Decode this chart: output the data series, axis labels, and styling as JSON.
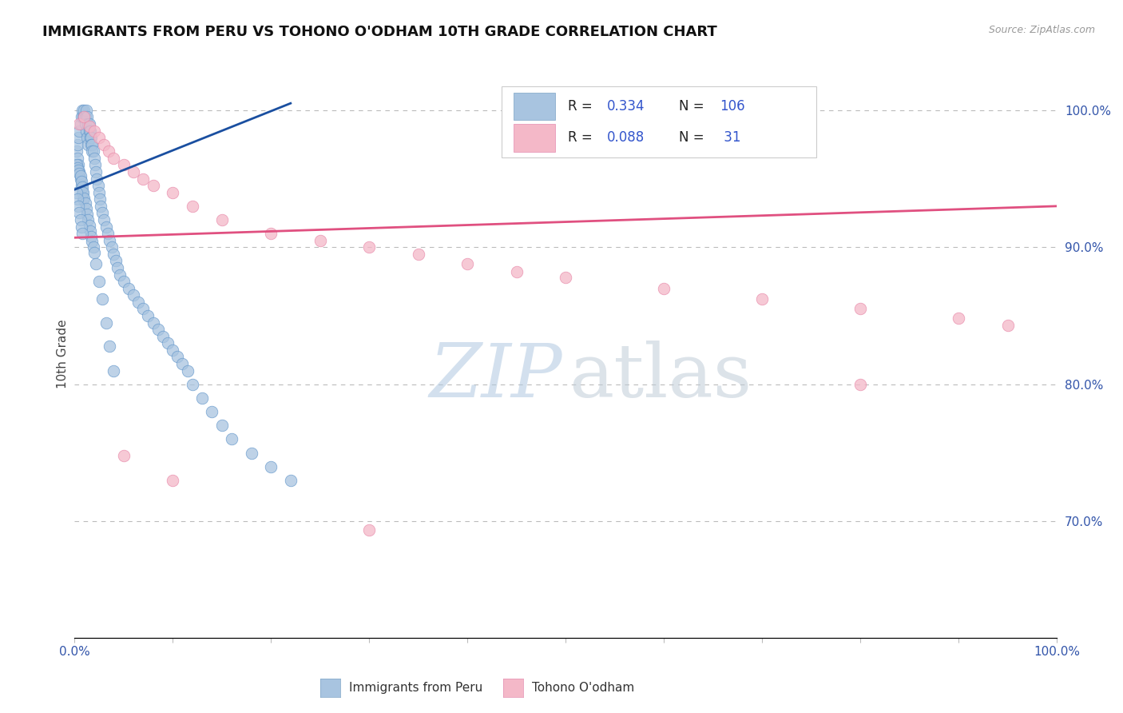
{
  "title": "IMMIGRANTS FROM PERU VS TOHONO O'ODHAM 10TH GRADE CORRELATION CHART",
  "source_text": "Source: ZipAtlas.com",
  "ylabel": "10th Grade",
  "y_tick_labels": [
    "70.0%",
    "80.0%",
    "90.0%",
    "100.0%"
  ],
  "y_tick_values": [
    0.7,
    0.8,
    0.9,
    1.0
  ],
  "x_range": [
    0.0,
    1.0
  ],
  "y_range": [
    0.615,
    1.03
  ],
  "series1_color": "#a8c4e0",
  "series1_edge": "#6699cc",
  "series2_color": "#f4b8c8",
  "series2_edge": "#e88aaa",
  "line1_color": "#1a4fa0",
  "line2_color": "#e05080",
  "watermark_zip_color": "#b0c8e0",
  "watermark_atlas_color": "#c0ccd8",
  "background_color": "#ffffff",
  "title_fontsize": 13,
  "axis_label_color": "#3355aa",
  "grid_color": "#bbbbbb",
  "legend_r1": "0.334",
  "legend_n1": "106",
  "legend_r2": "0.088",
  "legend_n2": " 31",
  "blue_x": [
    0.002,
    0.003,
    0.003,
    0.004,
    0.004,
    0.005,
    0.005,
    0.006,
    0.006,
    0.007,
    0.007,
    0.008,
    0.008,
    0.009,
    0.009,
    0.01,
    0.01,
    0.011,
    0.011,
    0.012,
    0.012,
    0.013,
    0.013,
    0.014,
    0.014,
    0.015,
    0.015,
    0.016,
    0.016,
    0.017,
    0.017,
    0.018,
    0.018,
    0.019,
    0.02,
    0.021,
    0.022,
    0.023,
    0.024,
    0.025,
    0.026,
    0.027,
    0.028,
    0.03,
    0.032,
    0.034,
    0.036,
    0.038,
    0.04,
    0.042,
    0.044,
    0.046,
    0.05,
    0.055,
    0.06,
    0.065,
    0.07,
    0.075,
    0.08,
    0.085,
    0.09,
    0.095,
    0.1,
    0.105,
    0.11,
    0.115,
    0.12,
    0.13,
    0.14,
    0.15,
    0.16,
    0.18,
    0.2,
    0.22,
    0.002,
    0.003,
    0.004,
    0.005,
    0.006,
    0.007,
    0.008,
    0.009,
    0.01,
    0.011,
    0.012,
    0.013,
    0.014,
    0.015,
    0.016,
    0.017,
    0.018,
    0.019,
    0.02,
    0.022,
    0.025,
    0.028,
    0.032,
    0.036,
    0.04,
    0.002,
    0.003,
    0.004,
    0.005,
    0.006,
    0.007,
    0.008
  ],
  "blue_y": [
    0.97,
    0.975,
    0.965,
    0.98,
    0.96,
    0.985,
    0.955,
    0.99,
    0.95,
    0.995,
    0.945,
    1.0,
    0.94,
    0.995,
    0.935,
    1.0,
    0.995,
    0.995,
    0.99,
    1.0,
    0.985,
    0.995,
    0.98,
    0.99,
    0.975,
    0.99,
    0.985,
    0.985,
    0.98,
    0.98,
    0.975,
    0.975,
    0.97,
    0.97,
    0.965,
    0.96,
    0.955,
    0.95,
    0.945,
    0.94,
    0.935,
    0.93,
    0.925,
    0.92,
    0.915,
    0.91,
    0.905,
    0.9,
    0.895,
    0.89,
    0.885,
    0.88,
    0.875,
    0.87,
    0.865,
    0.86,
    0.855,
    0.85,
    0.845,
    0.84,
    0.835,
    0.83,
    0.825,
    0.82,
    0.815,
    0.81,
    0.8,
    0.79,
    0.78,
    0.77,
    0.76,
    0.75,
    0.74,
    0.73,
    0.96,
    0.958,
    0.956,
    0.954,
    0.952,
    0.948,
    0.944,
    0.94,
    0.936,
    0.932,
    0.928,
    0.924,
    0.92,
    0.916,
    0.912,
    0.908,
    0.904,
    0.9,
    0.896,
    0.888,
    0.875,
    0.862,
    0.845,
    0.828,
    0.81,
    0.94,
    0.935,
    0.93,
    0.925,
    0.92,
    0.915,
    0.91
  ],
  "pink_x": [
    0.005,
    0.01,
    0.015,
    0.02,
    0.025,
    0.03,
    0.035,
    0.04,
    0.05,
    0.06,
    0.07,
    0.08,
    0.1,
    0.12,
    0.15,
    0.2,
    0.25,
    0.3,
    0.35,
    0.4,
    0.45,
    0.5,
    0.6,
    0.7,
    0.8,
    0.9,
    0.95,
    0.05,
    0.1,
    0.3,
    0.8
  ],
  "pink_y": [
    0.99,
    0.995,
    0.988,
    0.985,
    0.98,
    0.975,
    0.97,
    0.965,
    0.96,
    0.955,
    0.95,
    0.945,
    0.94,
    0.93,
    0.92,
    0.91,
    0.905,
    0.9,
    0.895,
    0.888,
    0.882,
    0.878,
    0.87,
    0.862,
    0.855,
    0.848,
    0.843,
    0.748,
    0.73,
    0.694,
    0.8
  ],
  "blue_line_x": [
    0.0,
    0.22
  ],
  "blue_line_y": [
    0.942,
    1.005
  ],
  "pink_line_x": [
    0.0,
    1.0
  ],
  "pink_line_y": [
    0.907,
    0.93
  ]
}
